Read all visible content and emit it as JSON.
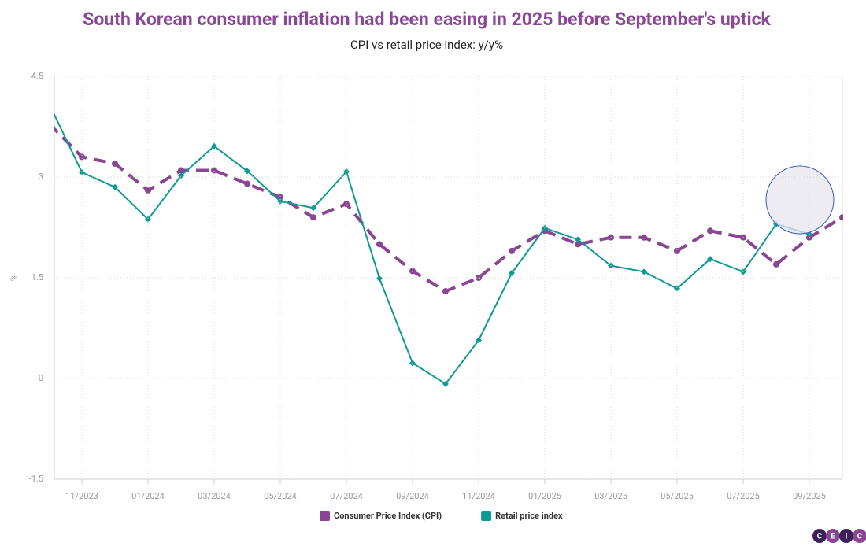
{
  "chart_data": {
    "type": "line",
    "title": "South Korean consumer inflation had been easing in 2025 before September's uptick",
    "subtitle": "CPI vs retail price index: y/y%",
    "y_label": "%",
    "categories": [
      null,
      "11/2023",
      null,
      "01/2024",
      null,
      "03/2024",
      null,
      "05/2024",
      null,
      "07/2024",
      null,
      "09/2024",
      null,
      "11/2024",
      null,
      "01/2025",
      null,
      "03/2025",
      null,
      "05/2025",
      null,
      "07/2025",
      null,
      "09/2025",
      null
    ],
    "series": [
      {
        "name": "Consumer Price Index (CPI)",
        "color": "#8a4593",
        "line_style": "dashed",
        "marker": "circle",
        "values": [
          3.8,
          3.3,
          3.2,
          2.8,
          3.1,
          3.1,
          2.9,
          2.7,
          2.4,
          2.6,
          2.0,
          1.6,
          1.3,
          1.5,
          1.9,
          2.2,
          2.0,
          2.1,
          2.1,
          1.9,
          2.2,
          2.1,
          1.7,
          2.1,
          2.4
        ]
      },
      {
        "name": "Retail price index",
        "color": "#0e9a94",
        "line_style": "solid",
        "marker": "diamond",
        "values": [
          4.1,
          3.07,
          2.85,
          2.37,
          3.02,
          3.46,
          3.09,
          2.64,
          2.54,
          3.08,
          1.49,
          0.23,
          -0.08,
          0.57,
          1.57,
          2.24,
          2.07,
          1.68,
          1.59,
          1.34,
          1.78,
          1.59,
          2.3,
          2.15,
          null
        ]
      }
    ],
    "ylim": [
      -1.5,
      4.5
    ],
    "yticks": [
      -1.5,
      0,
      1.5,
      3,
      4.5
    ],
    "grid": true,
    "legend": "bottom",
    "logo": [
      "C",
      "E",
      "I",
      "C"
    ]
  }
}
